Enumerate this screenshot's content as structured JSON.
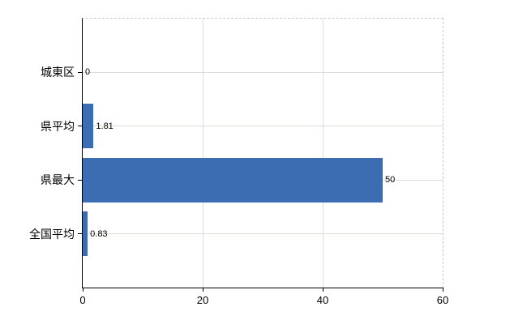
{
  "chart_data": {
    "type": "bar",
    "orientation": "horizontal",
    "title": "",
    "categories": [
      "城東区",
      "県平均",
      "県最大",
      "全国平均"
    ],
    "values": [
      0,
      1.81,
      50,
      0.83
    ],
    "value_labels": [
      "0",
      "1.81",
      "50",
      "0.83"
    ],
    "x_ticks": [
      0,
      20,
      40,
      60
    ],
    "x_tick_labels": [
      "0",
      "20",
      "40",
      "60"
    ],
    "xlim": [
      0,
      60
    ],
    "grid": true,
    "legend": false,
    "colors": {
      "bar": "#3c6cb2",
      "h_gridline": "#d8e2d4",
      "v_gridline": "#dcdcdc",
      "border_dash": "#c8c8c8",
      "axis": "#000000",
      "text": "#000000"
    }
  }
}
